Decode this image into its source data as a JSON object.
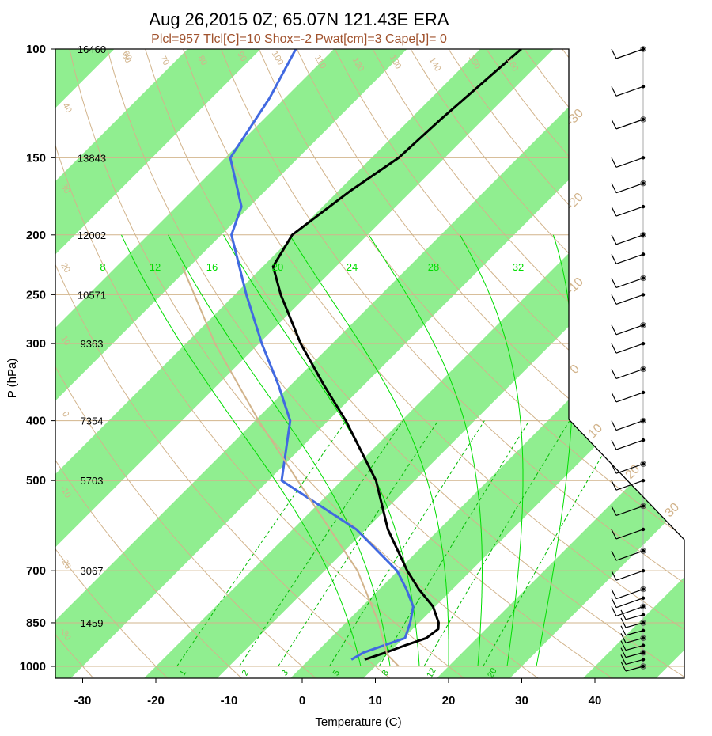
{
  "title": "Aug 26,2015 0Z; 65.07N 121.43E ERA",
  "subtitle": "Plcl=957 Tlcl[C]=10 Shox=-2 Pwat[cm]=3 Cape[J]= 0",
  "chart_data": {
    "type": "line",
    "chart_kind": "skew-T log-P diagram",
    "xlabel": "Temperature (C)",
    "ylabel": "P (hPa)",
    "xlim": [
      -34,
      46
    ],
    "ylim_hpa": [
      1050,
      100
    ],
    "x_ticks": [
      "-30",
      "-20",
      "-10",
      "0",
      "10",
      "20",
      "30",
      "40"
    ],
    "y_ticks": [
      "100",
      "150",
      "200",
      "250",
      "300",
      "400",
      "500",
      "700",
      "850",
      "1000"
    ],
    "height_labels": [
      {
        "p": 100,
        "text": "16460"
      },
      {
        "p": 150,
        "text": "13843"
      },
      {
        "p": 200,
        "text": "12002"
      },
      {
        "p": 250,
        "text": "10571"
      },
      {
        "p": 300,
        "text": "9363"
      },
      {
        "p": 400,
        "text": "7354"
      },
      {
        "p": 500,
        "text": "5703"
      },
      {
        "p": 700,
        "text": "3067"
      },
      {
        "p": 850,
        "text": "1459"
      }
    ],
    "skewed_isotherm_labels": [
      "-30",
      "-20",
      "-10",
      "0",
      "10",
      "20",
      "30"
    ],
    "theta_labels": [
      "20",
      "30",
      "40",
      "50",
      "60",
      "70",
      "80",
      "90",
      "100",
      "110",
      "120",
      "130",
      "140",
      "150",
      "160",
      "10",
      "0",
      "-10",
      "-20",
      "-30"
    ],
    "saturated_adiabat_labels": [
      "8",
      "12",
      "16",
      "20",
      "24",
      "28",
      "32"
    ],
    "mixing_ratio_labels": [
      "1",
      "2",
      "3",
      "5",
      "8",
      "12",
      "20"
    ],
    "series": [
      {
        "name": "temperature",
        "color": "#000000",
        "points": [
          {
            "p": 100,
            "t": -54.4
          },
          {
            "p": 130,
            "t": -55.8
          },
          {
            "p": 150,
            "t": -56.3
          },
          {
            "p": 170,
            "t": -58.4
          },
          {
            "p": 200,
            "t": -60.3
          },
          {
            "p": 225,
            "t": -58.6
          },
          {
            "p": 250,
            "t": -53.7
          },
          {
            "p": 300,
            "t": -44.3
          },
          {
            "p": 350,
            "t": -35.5
          },
          {
            "p": 400,
            "t": -27.6
          },
          {
            "p": 500,
            "t": -15.3
          },
          {
            "p": 600,
            "t": -7.0
          },
          {
            "p": 700,
            "t": 1.3
          },
          {
            "p": 750,
            "t": 5.4
          },
          {
            "p": 800,
            "t": 9.7
          },
          {
            "p": 850,
            "t": 12.7
          },
          {
            "p": 870,
            "t": 13.5
          },
          {
            "p": 900,
            "t": 13.1
          },
          {
            "p": 925,
            "t": 11.2
          },
          {
            "p": 950,
            "t": 9.5
          },
          {
            "p": 975,
            "t": 7.6
          }
        ]
      },
      {
        "name": "dewpoint",
        "color": "#4169e1",
        "points": [
          {
            "p": 100,
            "t": -85.2
          },
          {
            "p": 120,
            "t": -82.1
          },
          {
            "p": 150,
            "t": -79.3
          },
          {
            "p": 180,
            "t": -71.1
          },
          {
            "p": 200,
            "t": -68.6
          },
          {
            "p": 250,
            "t": -58.4
          },
          {
            "p": 300,
            "t": -49.6
          },
          {
            "p": 350,
            "t": -41.7
          },
          {
            "p": 400,
            "t": -35.2
          },
          {
            "p": 500,
            "t": -28.2
          },
          {
            "p": 600,
            "t": -11.3
          },
          {
            "p": 700,
            "t": -0.1
          },
          {
            "p": 750,
            "t": 3.7
          },
          {
            "p": 800,
            "t": 7.0
          },
          {
            "p": 850,
            "t": 8.8
          },
          {
            "p": 900,
            "t": 10.2
          },
          {
            "p": 950,
            "t": 6.5
          },
          {
            "p": 975,
            "t": 5.8
          }
        ]
      },
      {
        "name": "parcel",
        "color": "#d2b48c",
        "points": [
          {
            "p": 1000,
            "t": 13.2
          },
          {
            "p": 957,
            "t": 10.0
          },
          {
            "p": 850,
            "t": 4.5
          },
          {
            "p": 700,
            "t": -5.5
          },
          {
            "p": 500,
            "t": -26.0
          },
          {
            "p": 400,
            "t": -39.5
          },
          {
            "p": 300,
            "t": -56.0
          },
          {
            "p": 250,
            "t": -65.5
          },
          {
            "p": 225,
            "t": -71.0
          }
        ]
      }
    ],
    "wind_barbs_levels_hpa": [
      100,
      115,
      130,
      150,
      165,
      180,
      200,
      215,
      235,
      250,
      280,
      300,
      330,
      360,
      400,
      430,
      470,
      500,
      550,
      600,
      650,
      700,
      750,
      775,
      800,
      825,
      850,
      875,
      900,
      925,
      950,
      975,
      1000
    ],
    "colors": {
      "band": "#90ee90",
      "isotherm": "#d2b48c",
      "temperature": "#000000",
      "dewpoint": "#4169e1",
      "moist": "#00dd00",
      "mixing": "#00bb00"
    }
  }
}
